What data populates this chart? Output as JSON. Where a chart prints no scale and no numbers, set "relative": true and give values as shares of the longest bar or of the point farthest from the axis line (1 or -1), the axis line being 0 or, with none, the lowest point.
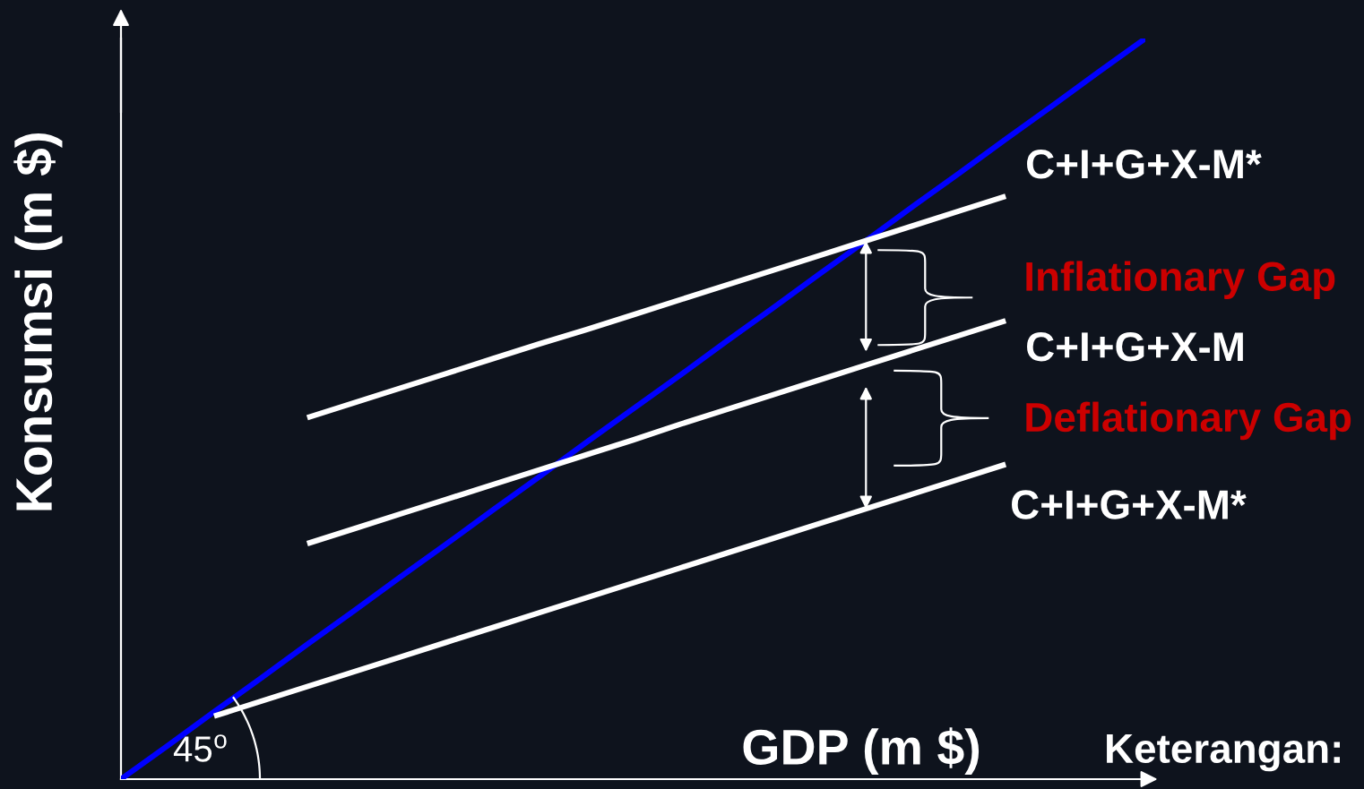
{
  "chart_data": {
    "type": "line",
    "relative": true,
    "xlabel": "GDP (m $)",
    "ylabel": "Konsumsi (m $)",
    "categories": [
      null,
      null,
      null,
      null,
      null,
      null,
      null,
      null,
      null,
      null,
      null,
      null,
      null,
      null,
      null,
      null,
      null,
      null,
      null,
      null,
      null,
      null,
      null
    ],
    "series": [
      {
        "color": "#0000ff",
        "values": [
          0,
          0.045,
          0.091,
          0.136,
          0.182,
          0.227,
          0.273,
          0.318,
          0.364,
          0.409,
          0.455,
          0.5,
          0.545,
          0.591,
          0.636,
          0.682,
          0.727,
          0.773,
          0.818,
          0.864,
          0.909,
          0.955,
          1
        ]
      },
      {
        "name": "C+I+G+X-M*",
        "color": "#ffffff",
        "values": [
          null,
          null,
          null,
          null,
          0.488,
          0.508,
          0.528,
          0.548,
          0.568,
          0.588,
          0.607,
          0.627,
          0.647,
          0.667,
          0.687,
          0.707,
          0.727,
          0.747,
          0.767,
          0.787,
          null,
          null,
          null
        ]
      },
      {
        "name": "C+I+G+X-M",
        "color": "#ffffff",
        "values": [
          null,
          null,
          null,
          null,
          0.318,
          0.338,
          0.358,
          0.378,
          0.398,
          0.418,
          0.438,
          0.458,
          0.479,
          0.499,
          0.519,
          0.539,
          0.559,
          0.579,
          0.599,
          0.619,
          null,
          null,
          null
        ]
      },
      {
        "name": "C+I+G+X-M*",
        "color": "#ffffff",
        "values": [
          null,
          null,
          0.085,
          0.105,
          0.125,
          0.145,
          0.165,
          0.185,
          0.205,
          0.225,
          0.245,
          0.265,
          0.285,
          0.305,
          0.325,
          0.345,
          0.365,
          0.385,
          0.405,
          0.425,
          null,
          null,
          null
        ]
      }
    ],
    "annotations": [
      "45$^{o}$",
      "Inflationary Gap",
      "Deflationary Gap",
      "Keterangan:"
    ]
  }
}
